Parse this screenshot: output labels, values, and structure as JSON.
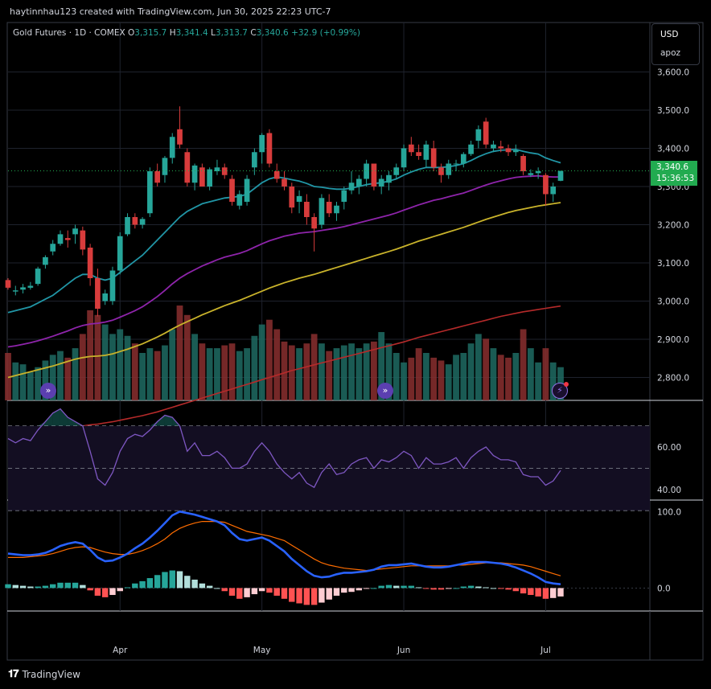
{
  "header": {
    "credit": "haytinnhau123 created with TradingView.com, Jun 30, 2025 22:23 UTC-7"
  },
  "legend": {
    "symbol": "Gold Futures · 1D · COMEX",
    "o_label": "O",
    "o_value": "3,315.7",
    "h_label": "H",
    "h_value": "3,341.4",
    "l_label": "L",
    "l_value": "3,313.7",
    "c_label": "C",
    "c_value": "3,340.6",
    "change": "+32.9 (+0.99%)"
  },
  "currency": {
    "code": "USD",
    "symbol": "apoz"
  },
  "price_tag": {
    "price": "3,340.6",
    "countdown": "15:36:53"
  },
  "footer": {
    "brand": "TradingView"
  },
  "colors": {
    "up": "#26a69a",
    "down": "#d83c3c",
    "ema_fast": "#2196a6",
    "ema_mid": "#8e24aa",
    "ema_slow": "#c9b32b",
    "ema_long": "#b52a2a",
    "rsi": "#7e57c2",
    "macd": "#2962ff",
    "signal": "#ff6d00",
    "price_tag": "#22ab50"
  },
  "chart_data": [
    {
      "type": "candlestick",
      "title": "Gold Futures · 1D · COMEX",
      "x_labels": [
        "Apr",
        "May",
        "Jun",
        "Jul"
      ],
      "x_label_index": [
        15,
        34,
        53,
        72
      ],
      "ylim": [
        2740,
        3620
      ],
      "y_ticks": [
        "3,600.0",
        "3,500.0",
        "3,400.0",
        "3,300.0",
        "3,200.0",
        "3,100.0",
        "3,000.0",
        "2,900.0",
        "2,800.0"
      ],
      "y_tick_values": [
        3600,
        3500,
        3400,
        3300,
        3200,
        3100,
        3000,
        2900,
        2800
      ],
      "ohlc": [
        [
          3055,
          3060,
          3030,
          3035
        ],
        [
          3025,
          3040,
          3015,
          3028
        ],
        [
          3030,
          3045,
          3020,
          3036
        ],
        [
          3035,
          3050,
          3030,
          3040
        ],
        [
          3045,
          3090,
          3040,
          3085
        ],
        [
          3095,
          3120,
          3085,
          3115
        ],
        [
          3130,
          3160,
          3120,
          3150
        ],
        [
          3150,
          3185,
          3145,
          3175
        ],
        [
          3165,
          3185,
          3140,
          3160
        ],
        [
          3175,
          3200,
          3150,
          3190
        ],
        [
          3185,
          3195,
          3120,
          3135
        ],
        [
          3140,
          3150,
          3040,
          3060
        ],
        [
          3060,
          3085,
          2960,
          2980
        ],
        [
          3000,
          3030,
          2990,
          3020
        ],
        [
          3000,
          3090,
          2990,
          3080
        ],
        [
          3080,
          3180,
          3070,
          3170
        ],
        [
          3175,
          3230,
          3170,
          3220
        ],
        [
          3220,
          3230,
          3190,
          3200
        ],
        [
          3200,
          3220,
          3190,
          3215
        ],
        [
          3230,
          3350,
          3220,
          3340
        ],
        [
          3340,
          3360,
          3300,
          3310
        ],
        [
          3330,
          3380,
          3310,
          3375
        ],
        [
          3375,
          3440,
          3360,
          3430
        ],
        [
          3450,
          3510,
          3400,
          3410
        ],
        [
          3390,
          3400,
          3300,
          3310
        ],
        [
          3310,
          3360,
          3290,
          3355
        ],
        [
          3350,
          3360,
          3300,
          3300
        ],
        [
          3300,
          3350,
          3290,
          3345
        ],
        [
          3340,
          3370,
          3330,
          3350
        ],
        [
          3350,
          3360,
          3320,
          3330
        ],
        [
          3320,
          3330,
          3250,
          3260
        ],
        [
          3250,
          3290,
          3240,
          3280
        ],
        [
          3260,
          3330,
          3250,
          3320
        ],
        [
          3350,
          3400,
          3330,
          3390
        ],
        [
          3390,
          3440,
          3360,
          3435
        ],
        [
          3440,
          3450,
          3350,
          3360
        ],
        [
          3340,
          3360,
          3310,
          3320
        ],
        [
          3320,
          3340,
          3290,
          3300
        ],
        [
          3300,
          3310,
          3230,
          3245
        ],
        [
          3260,
          3290,
          3230,
          3275
        ],
        [
          3260,
          3280,
          3200,
          3220
        ],
        [
          3220,
          3230,
          3130,
          3190
        ],
        [
          3200,
          3280,
          3190,
          3270
        ],
        [
          3260,
          3280,
          3220,
          3230
        ],
        [
          3230,
          3260,
          3210,
          3250
        ],
        [
          3260,
          3300,
          3240,
          3290
        ],
        [
          3290,
          3340,
          3280,
          3310
        ],
        [
          3300,
          3330,
          3280,
          3320
        ],
        [
          3320,
          3370,
          3300,
          3360
        ],
        [
          3360,
          3360,
          3290,
          3300
        ],
        [
          3300,
          3330,
          3280,
          3320
        ],
        [
          3310,
          3340,
          3290,
          3330
        ],
        [
          3330,
          3360,
          3320,
          3350
        ],
        [
          3350,
          3410,
          3340,
          3400
        ],
        [
          3410,
          3430,
          3380,
          3390
        ],
        [
          3390,
          3410,
          3370,
          3380
        ],
        [
          3370,
          3420,
          3350,
          3410
        ],
        [
          3400,
          3420,
          3340,
          3350
        ],
        [
          3350,
          3360,
          3310,
          3330
        ],
        [
          3330,
          3370,
          3320,
          3360
        ],
        [
          3360,
          3370,
          3340,
          3360
        ],
        [
          3360,
          3390,
          3350,
          3385
        ],
        [
          3385,
          3420,
          3380,
          3410
        ],
        [
          3420,
          3460,
          3400,
          3450
        ],
        [
          3470,
          3480,
          3400,
          3410
        ],
        [
          3400,
          3420,
          3390,
          3410
        ],
        [
          3405,
          3420,
          3390,
          3400
        ],
        [
          3400,
          3410,
          3380,
          3390
        ],
        [
          3390,
          3410,
          3380,
          3395
        ],
        [
          3380,
          3385,
          3330,
          3340
        ],
        [
          3330,
          3345,
          3325,
          3335
        ],
        [
          3335,
          3350,
          3320,
          3340
        ],
        [
          3330,
          3335,
          3250,
          3280
        ],
        [
          3280,
          3310,
          3260,
          3300
        ],
        [
          3315,
          3341,
          3314,
          3341
        ]
      ],
      "ema_fast": [
        2970,
        2975,
        2980,
        2985,
        2995,
        3005,
        3015,
        3030,
        3045,
        3060,
        3070,
        3070,
        3060,
        3055,
        3060,
        3075,
        3090,
        3105,
        3120,
        3140,
        3160,
        3180,
        3200,
        3220,
        3235,
        3245,
        3255,
        3260,
        3265,
        3270,
        3272,
        3274,
        3280,
        3295,
        3310,
        3320,
        3325,
        3322,
        3318,
        3314,
        3308,
        3300,
        3298,
        3295,
        3293,
        3293,
        3296,
        3300,
        3305,
        3308,
        3310,
        3314,
        3320,
        3330,
        3338,
        3345,
        3350,
        3350,
        3350,
        3352,
        3355,
        3360,
        3368,
        3378,
        3386,
        3392,
        3395,
        3396,
        3397,
        3392,
        3388,
        3385,
        3375,
        3368,
        3362
      ],
      "ema_mid": [
        2880,
        2883,
        2887,
        2891,
        2896,
        2902,
        2908,
        2915,
        2922,
        2930,
        2936,
        2940,
        2942,
        2945,
        2950,
        2958,
        2966,
        2975,
        2985,
        2998,
        3012,
        3028,
        3045,
        3060,
        3072,
        3082,
        3092,
        3100,
        3108,
        3115,
        3120,
        3125,
        3132,
        3141,
        3150,
        3158,
        3164,
        3170,
        3174,
        3178,
        3180,
        3182,
        3185,
        3188,
        3191,
        3195,
        3200,
        3205,
        3210,
        3215,
        3220,
        3225,
        3231,
        3238,
        3245,
        3252,
        3258,
        3264,
        3268,
        3273,
        3278,
        3283,
        3290,
        3297,
        3304,
        3310,
        3315,
        3320,
        3324,
        3326,
        3327,
        3328,
        3326,
        3325,
        3325
      ],
      "ema_slow": [
        2800,
        2805,
        2810,
        2815,
        2820,
        2825,
        2830,
        2836,
        2842,
        2848,
        2852,
        2855,
        2856,
        2858,
        2862,
        2868,
        2874,
        2881,
        2888,
        2897,
        2906,
        2916,
        2927,
        2937,
        2946,
        2955,
        2964,
        2972,
        2980,
        2988,
        2995,
        3002,
        3010,
        3018,
        3026,
        3034,
        3041,
        3048,
        3054,
        3060,
        3065,
        3070,
        3076,
        3082,
        3088,
        3094,
        3100,
        3106,
        3112,
        3118,
        3124,
        3130,
        3136,
        3143,
        3150,
        3157,
        3163,
        3169,
        3175,
        3181,
        3187,
        3193,
        3200,
        3207,
        3214,
        3220,
        3226,
        3232,
        3237,
        3241,
        3245,
        3249,
        3252,
        3255,
        3258
      ],
      "ema_long": [
        2640,
        2643,
        2646,
        2649,
        2652,
        2655,
        2658,
        2662,
        2666,
        2670,
        2673,
        2676,
        2678,
        2681,
        2684,
        2688,
        2692,
        2696,
        2700,
        2705,
        2710,
        2716,
        2722,
        2728,
        2734,
        2740,
        2746,
        2752,
        2758,
        2764,
        2770,
        2776,
        2782,
        2788,
        2794,
        2800,
        2806,
        2812,
        2818,
        2823,
        2828,
        2833,
        2838,
        2843,
        2848,
        2853,
        2858,
        2863,
        2868,
        2873,
        2878,
        2883,
        2888,
        2893,
        2899,
        2905,
        2910,
        2915,
        2920,
        2925,
        2930,
        2935,
        2940,
        2945,
        2950,
        2955,
        2960,
        2964,
        2968,
        2972,
        2975,
        2978,
        2981,
        2984,
        2987
      ],
      "volume": [
        50,
        40,
        38,
        30,
        35,
        42,
        48,
        52,
        45,
        55,
        70,
        95,
        90,
        80,
        70,
        75,
        68,
        60,
        50,
        55,
        52,
        58,
        75,
        100,
        90,
        70,
        60,
        55,
        55,
        58,
        60,
        52,
        55,
        68,
        80,
        85,
        75,
        62,
        58,
        55,
        60,
        70,
        60,
        52,
        55,
        58,
        60,
        55,
        60,
        62,
        72,
        60,
        50,
        40,
        45,
        55,
        50,
        45,
        42,
        38,
        48,
        50,
        60,
        70,
        65,
        55,
        48,
        45,
        50,
        75,
        55,
        40,
        55,
        40,
        35
      ],
      "volume_max": 100
    },
    {
      "type": "line",
      "title": "RSI",
      "ylim": [
        35,
        82
      ],
      "y_ticks": [
        "60.00",
        "40.00"
      ],
      "y_tick_values": [
        60,
        40
      ],
      "bands": [
        70,
        50,
        30
      ],
      "values": [
        64,
        62,
        64,
        63,
        68,
        72,
        76,
        78,
        74,
        72,
        70,
        58,
        45,
        42,
        48,
        58,
        64,
        66,
        65,
        68,
        72,
        75,
        74,
        70,
        58,
        62,
        56,
        56,
        58,
        55,
        50,
        50,
        52,
        58,
        62,
        58,
        52,
        48,
        45,
        48,
        43,
        41,
        48,
        52,
        47,
        48,
        52,
        54,
        55,
        50,
        54,
        53,
        55,
        58,
        56,
        50,
        55,
        52,
        52,
        53,
        55,
        50,
        55,
        58,
        60,
        56,
        54,
        54,
        53,
        47,
        46,
        46,
        42,
        44,
        49
      ],
      "highlight_above": 70
    },
    {
      "type": "bar",
      "title": "MACD",
      "ylim": [
        -30,
        115
      ],
      "y_ticks": [
        "100.0",
        "0.0"
      ],
      "y_tick_values": [
        100,
        0
      ],
      "macd": [
        45,
        44,
        43,
        43,
        44,
        46,
        50,
        55,
        58,
        60,
        58,
        50,
        40,
        35,
        36,
        40,
        45,
        52,
        58,
        66,
        75,
        85,
        95,
        100,
        98,
        96,
        93,
        90,
        87,
        82,
        72,
        64,
        62,
        64,
        66,
        62,
        55,
        48,
        38,
        30,
        22,
        16,
        14,
        15,
        18,
        20,
        20,
        21,
        22,
        24,
        28,
        30,
        30,
        31,
        32,
        30,
        28,
        27,
        27,
        28,
        30,
        32,
        34,
        34,
        34,
        33,
        32,
        30,
        27,
        23,
        19,
        14,
        8,
        6,
        5
      ],
      "signal": [
        40,
        40,
        40,
        41,
        42,
        43,
        45,
        48,
        51,
        53,
        54,
        53,
        50,
        47,
        45,
        44,
        44,
        46,
        49,
        53,
        58,
        64,
        72,
        78,
        82,
        85,
        87,
        87,
        87,
        86,
        82,
        78,
        74,
        72,
        70,
        68,
        65,
        62,
        56,
        50,
        44,
        38,
        33,
        30,
        28,
        26,
        25,
        24,
        23,
        24,
        25,
        26,
        27,
        28,
        29,
        29,
        29,
        29,
        29,
        29,
        30,
        30,
        31,
        32,
        33,
        33,
        33,
        32,
        31,
        30,
        28,
        25,
        22,
        19,
        16
      ],
      "histogram": [
        5,
        4,
        3,
        2,
        2,
        3,
        5,
        7,
        7,
        7,
        4,
        -3,
        -10,
        -12,
        -9,
        -4,
        1,
        6,
        9,
        13,
        17,
        21,
        23,
        22,
        16,
        11,
        6,
        3,
        0,
        -4,
        -10,
        -14,
        -12,
        -8,
        -4,
        -6,
        -10,
        -14,
        -18,
        -20,
        -22,
        -22,
        -19,
        -15,
        -10,
        -6,
        -5,
        -3,
        -1,
        0,
        3,
        4,
        3,
        3,
        3,
        1,
        -1,
        -2,
        -2,
        -1,
        0,
        2,
        3,
        2,
        1,
        0,
        -1,
        -2,
        -4,
        -7,
        -9,
        -11,
        -14,
        -13,
        -11
      ]
    }
  ]
}
